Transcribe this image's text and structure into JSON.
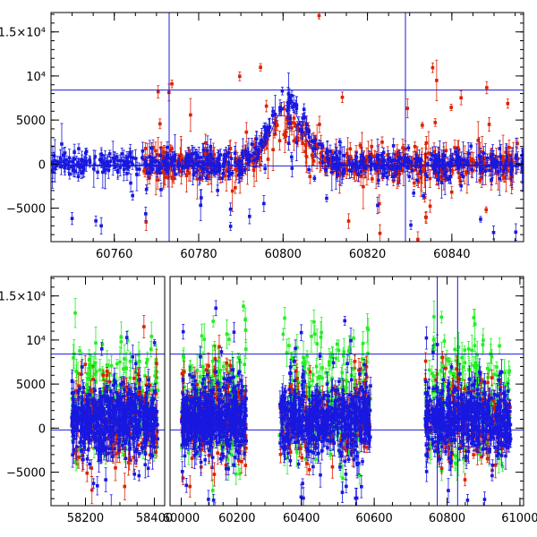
{
  "chart_data": [
    {
      "type": "scatter",
      "panel": "top",
      "xlim": [
        60745,
        60857
      ],
      "ylim": [
        -8800,
        17200
      ],
      "xticks": [
        60760,
        60780,
        60800,
        60820,
        60840
      ],
      "yticks": [
        {
          "value": -5000,
          "label": "−5000"
        },
        {
          "value": 0,
          "label": "0"
        },
        {
          "value": 5000,
          "label": "5000"
        },
        {
          "value": 10000,
          "label": "10⁴"
        },
        {
          "value": 15000,
          "label": "1.5×10⁴"
        }
      ],
      "hlines": [
        8400,
        -200
      ],
      "vlines": [
        60773,
        60829
      ],
      "series": [
        {
          "name": "red",
          "color": "#dd2200"
        },
        {
          "name": "blue",
          "color": "#1818e0"
        }
      ],
      "model_curve": {
        "color": "#1818e0",
        "center": 60801,
        "peak": 6800,
        "width": 5
      }
    },
    {
      "type": "scatter",
      "panel": "bottom",
      "segments": [
        {
          "xlim": [
            58100,
            58430
          ],
          "xticks": [
            58200,
            58400
          ]
        },
        {
          "xlim": [
            59960,
            60300
          ],
          "xticks": [
            60000,
            60200
          ]
        },
        {
          "xlim": [
            60300,
            61010
          ],
          "xticks": [
            60400,
            60600,
            60800,
            61000
          ]
        }
      ],
      "ylim": [
        -8800,
        17200
      ],
      "yticks": [
        {
          "value": -5000,
          "label": "−5000"
        },
        {
          "value": 0,
          "label": "0"
        },
        {
          "value": 5000,
          "label": "5000"
        },
        {
          "value": 10000,
          "label": "10⁴"
        },
        {
          "value": 15000,
          "label": "1.5×10⁴"
        }
      ],
      "hlines": [
        8400,
        -200
      ],
      "vlines": [
        60773,
        60829
      ],
      "series": [
        {
          "name": "green",
          "color": "#22ee22"
        },
        {
          "name": "red",
          "color": "#dd2200"
        },
        {
          "name": "blue",
          "color": "#1818e0"
        }
      ]
    }
  ]
}
